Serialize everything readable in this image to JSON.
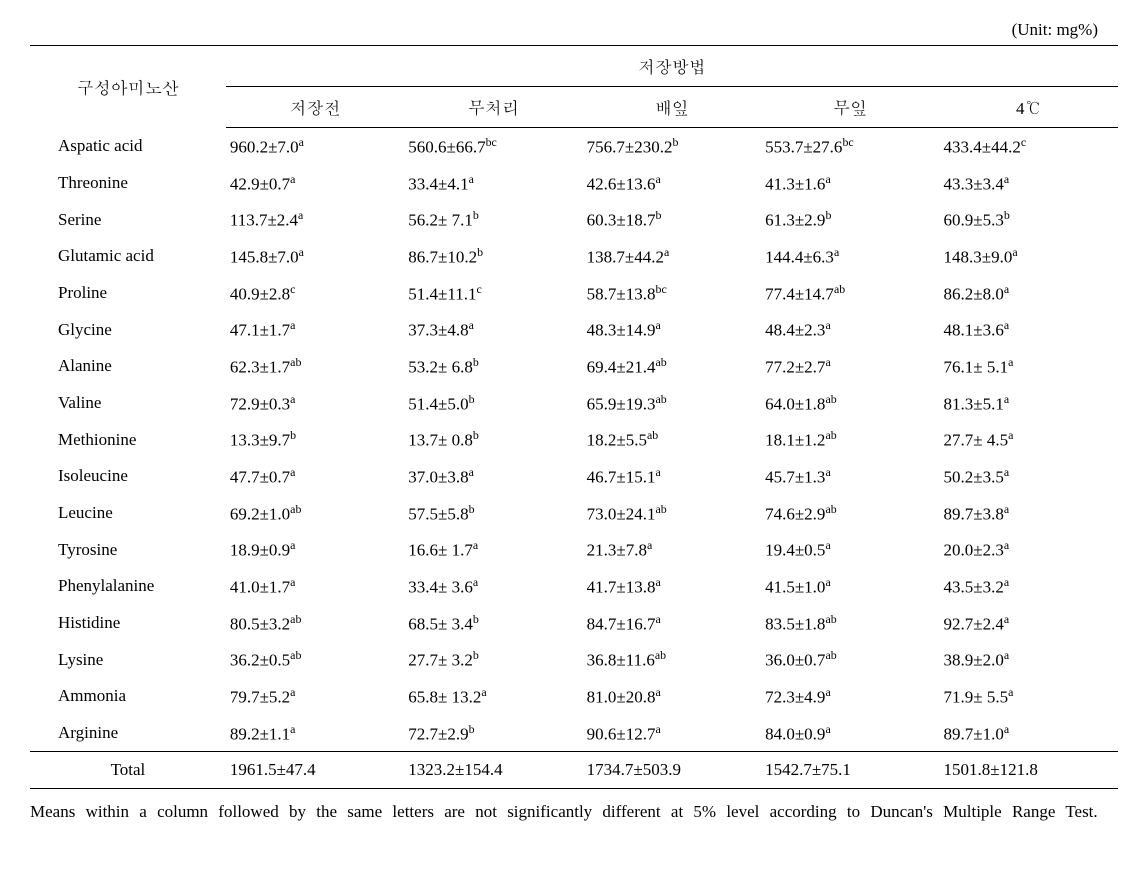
{
  "unit": "(Unit: mg%)",
  "headers": {
    "row_label": "구성아미노산",
    "group_label": "저장방법",
    "columns": [
      "저장전",
      "무처리",
      "배잎",
      "무잎",
      "4℃"
    ]
  },
  "rows": [
    {
      "name": "Aspatic acid",
      "c0": {
        "v": "960.2±7.0",
        "s": "a"
      },
      "c1": {
        "v": "560.6±66.7",
        "s": "bc"
      },
      "c2": {
        "v": "756.7±230.2",
        "s": "b"
      },
      "c3": {
        "v": "553.7±27.6",
        "s": "bc"
      },
      "c4": {
        "v": "433.4±44.2",
        "s": "c"
      }
    },
    {
      "name": "Threonine",
      "c0": {
        "v": "42.9±0.7",
        "s": "a"
      },
      "c1": {
        "v": "33.4±4.1",
        "s": "a"
      },
      "c2": {
        "v": "42.6±13.6",
        "s": "a"
      },
      "c3": {
        "v": "41.3±1.6",
        "s": "a"
      },
      "c4": {
        "v": "43.3±3.4",
        "s": "a"
      }
    },
    {
      "name": "Serine",
      "c0": {
        "v": "113.7±2.4",
        "s": "a"
      },
      "c1": {
        "v": "56.2± 7.1",
        "s": "b"
      },
      "c2": {
        "v": "60.3±18.7",
        "s": "b"
      },
      "c3": {
        "v": "61.3±2.9",
        "s": "b"
      },
      "c4": {
        "v": "60.9±5.3",
        "s": "b"
      }
    },
    {
      "name": "Glutamic acid",
      "c0": {
        "v": "145.8±7.0",
        "s": "a"
      },
      "c1": {
        "v": "86.7±10.2",
        "s": "b"
      },
      "c2": {
        "v": "138.7±44.2",
        "s": "a"
      },
      "c3": {
        "v": "144.4±6.3",
        "s": "a"
      },
      "c4": {
        "v": "148.3±9.0",
        "s": "a"
      }
    },
    {
      "name": "Proline",
      "c0": {
        "v": "40.9±2.8",
        "s": "c"
      },
      "c1": {
        "v": "51.4±11.1",
        "s": "c"
      },
      "c2": {
        "v": "58.7±13.8",
        "s": "bc"
      },
      "c3": {
        "v": "77.4±14.7",
        "s": "ab"
      },
      "c4": {
        "v": "86.2±8.0",
        "s": "a"
      }
    },
    {
      "name": "Glycine",
      "c0": {
        "v": "47.1±1.7",
        "s": "a"
      },
      "c1": {
        "v": "37.3±4.8",
        "s": "a"
      },
      "c2": {
        "v": "48.3±14.9",
        "s": "a"
      },
      "c3": {
        "v": "48.4±2.3",
        "s": "a"
      },
      "c4": {
        "v": "48.1±3.6",
        "s": "a"
      }
    },
    {
      "name": "Alanine",
      "c0": {
        "v": "62.3±1.7",
        "s": "ab"
      },
      "c1": {
        "v": "53.2± 6.8",
        "s": "b"
      },
      "c2": {
        "v": "69.4±21.4",
        "s": "ab"
      },
      "c3": {
        "v": "77.2±2.7",
        "s": "a"
      },
      "c4": {
        "v": "76.1± 5.1",
        "s": "a"
      }
    },
    {
      "name": "Valine",
      "c0": {
        "v": "72.9±0.3",
        "s": "a"
      },
      "c1": {
        "v": "51.4±5.0",
        "s": "b"
      },
      "c2": {
        "v": "65.9±19.3",
        "s": "ab"
      },
      "c3": {
        "v": "64.0±1.8",
        "s": "ab"
      },
      "c4": {
        "v": "81.3±5.1",
        "s": "a"
      }
    },
    {
      "name": "Methionine",
      "c0": {
        "v": "13.3±9.7",
        "s": "b"
      },
      "c1": {
        "v": "13.7± 0.8",
        "s": "b"
      },
      "c2": {
        "v": "18.2±5.5",
        "s": "ab"
      },
      "c3": {
        "v": "18.1±1.2",
        "s": "ab"
      },
      "c4": {
        "v": "27.7± 4.5",
        "s": "a"
      }
    },
    {
      "name": "Isoleucine",
      "c0": {
        "v": "47.7±0.7",
        "s": "a"
      },
      "c1": {
        "v": "37.0±3.8",
        "s": "a"
      },
      "c2": {
        "v": "46.7±15.1",
        "s": "a"
      },
      "c3": {
        "v": "45.7±1.3",
        "s": "a"
      },
      "c4": {
        "v": "50.2±3.5",
        "s": "a"
      }
    },
    {
      "name": "Leucine",
      "c0": {
        "v": "69.2±1.0",
        "s": "ab"
      },
      "c1": {
        "v": "57.5±5.8",
        "s": "b"
      },
      "c2": {
        "v": "73.0±24.1",
        "s": "ab"
      },
      "c3": {
        "v": "74.6±2.9",
        "s": "ab"
      },
      "c4": {
        "v": "89.7±3.8",
        "s": "a"
      }
    },
    {
      "name": "Tyrosine",
      "c0": {
        "v": "18.9±0.9",
        "s": "a"
      },
      "c1": {
        "v": "16.6± 1.7",
        "s": "a"
      },
      "c2": {
        "v": "21.3±7.8",
        "s": "a"
      },
      "c3": {
        "v": "19.4±0.5",
        "s": "a"
      },
      "c4": {
        "v": "20.0±2.3",
        "s": "a"
      }
    },
    {
      "name": "Phenylalanine",
      "c0": {
        "v": "41.0±1.7",
        "s": "a"
      },
      "c1": {
        "v": "33.4± 3.6",
        "s": "a"
      },
      "c2": {
        "v": "41.7±13.8",
        "s": "a"
      },
      "c3": {
        "v": "41.5±1.0",
        "s": "a"
      },
      "c4": {
        "v": "43.5±3.2",
        "s": "a"
      }
    },
    {
      "name": "Histidine",
      "c0": {
        "v": "80.5±3.2",
        "s": "ab"
      },
      "c1": {
        "v": "68.5± 3.4",
        "s": "b"
      },
      "c2": {
        "v": "84.7±16.7",
        "s": "a"
      },
      "c3": {
        "v": "83.5±1.8",
        "s": "ab"
      },
      "c4": {
        "v": "92.7±2.4",
        "s": "a"
      }
    },
    {
      "name": "Lysine",
      "c0": {
        "v": "36.2±0.5",
        "s": "ab"
      },
      "c1": {
        "v": "27.7± 3.2",
        "s": "b"
      },
      "c2": {
        "v": "36.8±11.6",
        "s": "ab"
      },
      "c3": {
        "v": "36.0±0.7",
        "s": "ab"
      },
      "c4": {
        "v": "38.9±2.0",
        "s": "a"
      }
    },
    {
      "name": "Ammonia",
      "c0": {
        "v": "79.7±5.2",
        "s": "a"
      },
      "c1": {
        "v": "65.8± 13.2",
        "s": "a"
      },
      "c2": {
        "v": "81.0±20.8",
        "s": "a"
      },
      "c3": {
        "v": "72.3±4.9",
        "s": "a"
      },
      "c4": {
        "v": "71.9± 5.5",
        "s": "a"
      }
    },
    {
      "name": "Arginine",
      "c0": {
        "v": "89.2±1.1",
        "s": "a"
      },
      "c1": {
        "v": "72.7±2.9",
        "s": "b"
      },
      "c2": {
        "v": "90.6±12.7",
        "s": "a"
      },
      "c3": {
        "v": "84.0±0.9",
        "s": "a"
      },
      "c4": {
        "v": "89.7±1.0",
        "s": "a"
      }
    }
  ],
  "total": {
    "label": "Total",
    "values": [
      "1961.5±47.4",
      "1323.2±154.4",
      "1734.7±503.9",
      "1542.7±75.1",
      "1501.8±121.8"
    ]
  },
  "footnote": "Means within a column followed by the same letters are not significantly different at 5% level according to Duncan's Multiple Range Test.",
  "style": {
    "background_color": "#ffffff",
    "text_color": "#000000",
    "border_color": "#000000",
    "font_family": "Times New Roman, Batang, serif",
    "body_fontsize": 17,
    "sup_fontsize_ratio": 0.7,
    "row_padding": 7,
    "header_padding": 8,
    "main_border_width": 1.5,
    "inner_border_width": 1,
    "col1_width_pct": 18,
    "other_col_width_pct": 16.4,
    "col1_padding_left": 28
  }
}
